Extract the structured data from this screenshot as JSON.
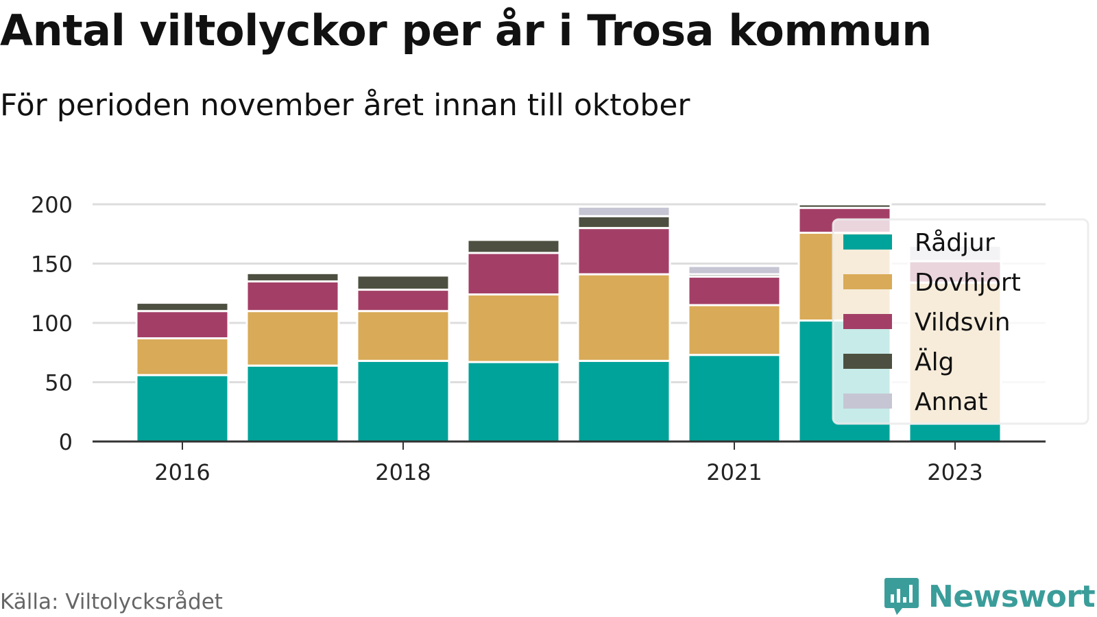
{
  "title": "Antal viltolyckor per år i Trosa kommun",
  "subtitle": "För perioden november året innan till oktober",
  "source": "Källa: Viltolycksrådet",
  "brand": "Newsworthy",
  "colors": {
    "brand": "#3a9d9a",
    "grid": "#dddddd",
    "axis": "#333333"
  },
  "chart_data": {
    "type": "bar",
    "stacked": true,
    "x": [
      2016,
      2017,
      2018,
      2019,
      2020,
      2021,
      2022,
      2023
    ],
    "x_tick_labels": [
      "2016",
      "2018",
      "2021",
      "2023"
    ],
    "x_tick_values": [
      2016,
      2018,
      2021,
      2023
    ],
    "ylim": [
      0,
      200
    ],
    "y_ticks": [
      0,
      50,
      100,
      150,
      200
    ],
    "grid": true,
    "legend_position": "right",
    "series": [
      {
        "name": "Rådjur",
        "color": "#00a39a",
        "values": [
          56,
          64,
          68,
          67,
          68,
          73,
          102,
          15
        ]
      },
      {
        "name": "Dovhjort",
        "color": "#d9aa57",
        "values": [
          31,
          46,
          42,
          57,
          73,
          42,
          74,
          119
        ]
      },
      {
        "name": "Vildsvin",
        "color": "#a33f66",
        "values": [
          23,
          25,
          18,
          35,
          39,
          24,
          21,
          18
        ]
      },
      {
        "name": "Älg",
        "color": "#4d5040",
        "values": [
          7,
          7,
          12,
          11,
          10,
          2,
          3,
          0
        ]
      },
      {
        "name": "Annat",
        "color": "#c6c5d3",
        "values": [
          0,
          0,
          1,
          0,
          8,
          7,
          0,
          13
        ]
      }
    ]
  }
}
